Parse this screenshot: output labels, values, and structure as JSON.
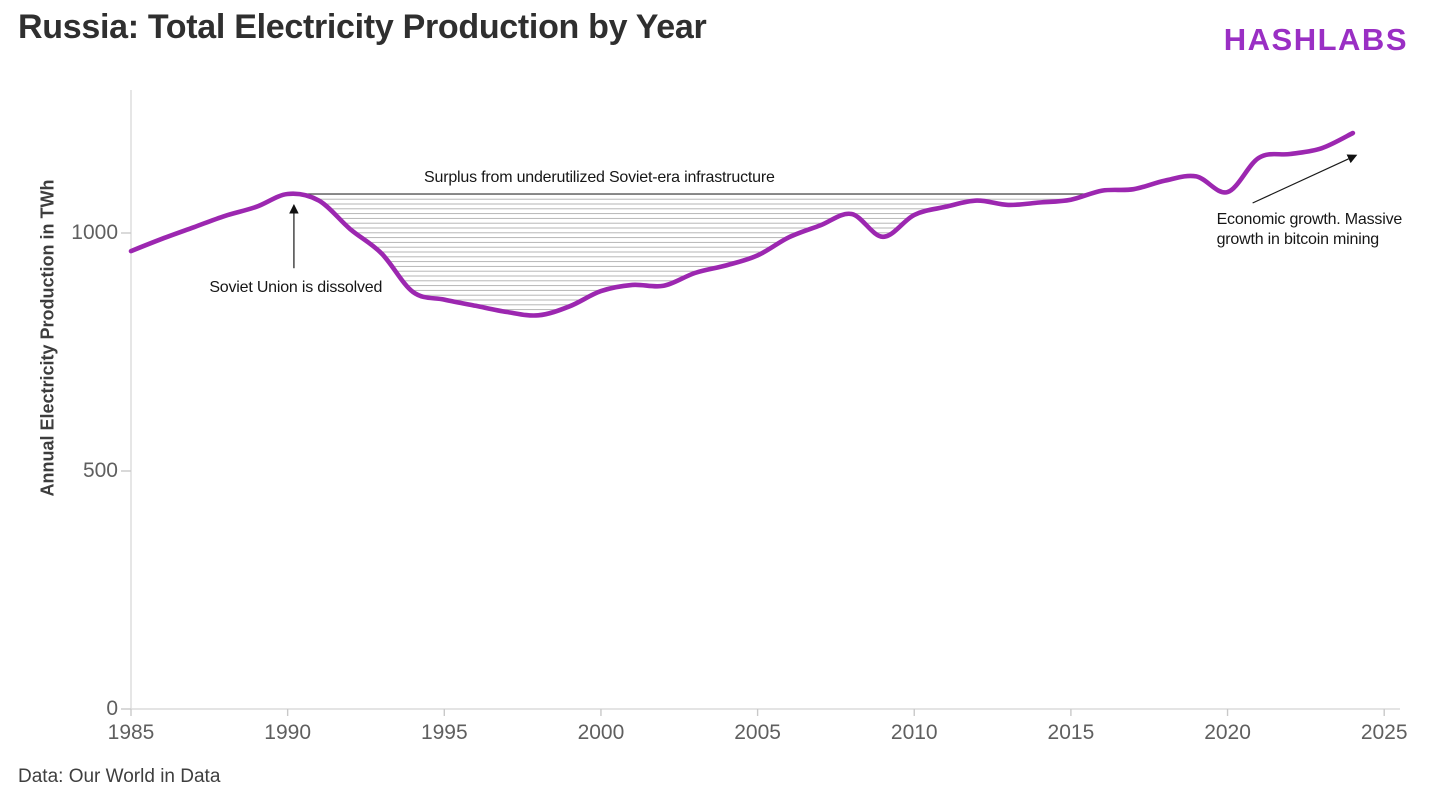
{
  "header": {
    "title": "Russia: Total Electricity Production by Year",
    "logo": "HASHLABS",
    "logo_color": "#9A2FC4",
    "title_color": "#2f2f2f"
  },
  "footer": {
    "source": "Data: Our World in Data"
  },
  "chart_data": {
    "type": "line",
    "title": "Russia: Total Electricity Production by Year",
    "xlabel": "",
    "ylabel": "Annual Electricity Production in TWh",
    "x_ticks": [
      1985,
      1990,
      1995,
      2000,
      2005,
      2010,
      2015,
      2020,
      2025
    ],
    "y_ticks": [
      0,
      500,
      1000
    ],
    "xlim": [
      1985,
      2025
    ],
    "ylim": [
      0,
      1300
    ],
    "grid": false,
    "legend": "none",
    "series": [
      {
        "name": "Annual electricity production (TWh)",
        "color": "#9C27B0",
        "x": [
          1985,
          1986,
          1987,
          1988,
          1989,
          1990,
          1991,
          1992,
          1993,
          1994,
          1995,
          1996,
          1997,
          1998,
          1999,
          2000,
          2001,
          2002,
          2003,
          2004,
          2005,
          2006,
          2007,
          2008,
          2009,
          2010,
          2011,
          2012,
          2013,
          2014,
          2015,
          2016,
          2017,
          2018,
          2019,
          2020,
          2021,
          2022,
          2023,
          2024
        ],
        "values": [
          962,
          988,
          1012,
          1036,
          1055,
          1082,
          1068,
          1008,
          957,
          876,
          860,
          847,
          834,
          827,
          846,
          878,
          891,
          889,
          916,
          932,
          953,
          991,
          1016,
          1040,
          992,
          1038,
          1055,
          1068,
          1059,
          1064,
          1070,
          1089,
          1092,
          1110,
          1119,
          1086,
          1158,
          1166,
          1178,
          1210
        ]
      }
    ],
    "reference_line": {
      "value": 1082,
      "from_x": 1990,
      "to_x": 2015.63,
      "color": "#474747",
      "hatch_fill_between": true,
      "hatch_color": "#8f8f8f"
    },
    "annotations": [
      {
        "id": "surplus",
        "text": "Surplus from underutilized Soviet-era infrastructure",
        "x": 1999.95,
        "y": 1116,
        "anchor": "center"
      },
      {
        "id": "soviet-dissolved",
        "text": "Soviet Union is dissolved",
        "x": 1987.5,
        "y": 885,
        "anchor": "left-middle",
        "arrow": {
          "x1": 1990.2,
          "y1": 926,
          "x2": 1990.2,
          "y2": 1058
        }
      },
      {
        "id": "economic-growth",
        "lines": [
          "Economic growth. Massive",
          "growth in bitcoin mining"
        ],
        "x": 2019.65,
        "y": 1048,
        "anchor": "left-top",
        "arrow": {
          "x1": 2020.8,
          "y1": 1063,
          "x2": 2024.1,
          "y2": 1163
        }
      }
    ]
  }
}
